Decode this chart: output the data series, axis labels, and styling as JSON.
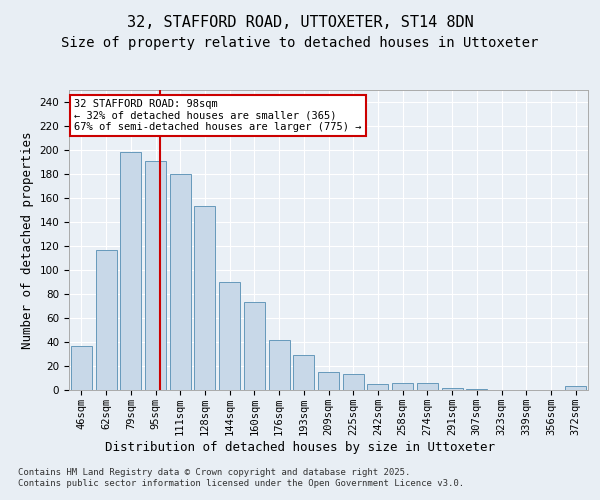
{
  "title": "32, STAFFORD ROAD, UTTOXETER, ST14 8DN",
  "subtitle": "Size of property relative to detached houses in Uttoxeter",
  "xlabel": "Distribution of detached houses by size in Uttoxeter",
  "ylabel": "Number of detached properties",
  "categories": [
    "46sqm",
    "62sqm",
    "79sqm",
    "95sqm",
    "111sqm",
    "128sqm",
    "144sqm",
    "160sqm",
    "176sqm",
    "193sqm",
    "209sqm",
    "225sqm",
    "242sqm",
    "258sqm",
    "274sqm",
    "291sqm",
    "307sqm",
    "323sqm",
    "339sqm",
    "356sqm",
    "372sqm"
  ],
  "values": [
    37,
    117,
    198,
    191,
    180,
    153,
    90,
    73,
    42,
    29,
    15,
    13,
    5,
    6,
    6,
    2,
    1,
    0,
    0,
    0,
    3
  ],
  "bar_color": "#c8d8e8",
  "bar_edge_color": "#6699bb",
  "annotation_text": "32 STAFFORD ROAD: 98sqm\n← 32% of detached houses are smaller (365)\n67% of semi-detached houses are larger (775) →",
  "annotation_box_color": "#ffffff",
  "annotation_box_edge_color": "#cc0000",
  "footer": "Contains HM Land Registry data © Crown copyright and database right 2025.\nContains public sector information licensed under the Open Government Licence v3.0.",
  "ylim": [
    0,
    250
  ],
  "yticks": [
    0,
    20,
    40,
    60,
    80,
    100,
    120,
    140,
    160,
    180,
    200,
    220,
    240
  ],
  "bg_color": "#e8eef4",
  "plot_bg_color": "#eaf0f6",
  "grid_color": "#ffffff",
  "title_fontsize": 11,
  "subtitle_fontsize": 10,
  "tick_fontsize": 7.5,
  "label_fontsize": 9,
  "annotation_fontsize": 7.5,
  "footer_fontsize": 6.5,
  "ylabel_fontsize": 9
}
